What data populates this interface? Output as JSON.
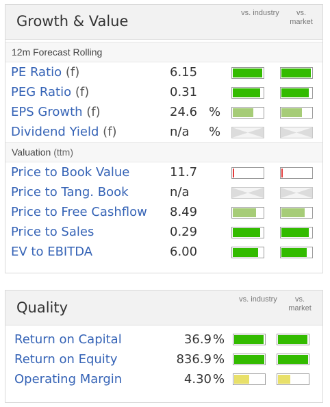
{
  "growth_value": {
    "title": "Growth & Value",
    "col_industry": "vs. industry",
    "col_market": "vs. market",
    "sections": [
      {
        "label": "12m Forecast Rolling",
        "label_sub": "",
        "rows": [
          {
            "label": "PE Ratio",
            "suffix": "(f)",
            "value": "6.15",
            "unit": "",
            "industry": {
              "level": 0.97,
              "color": "#33bb00"
            },
            "market": {
              "level": 0.97,
              "color": "#33bb00"
            }
          },
          {
            "label": "PEG Ratio",
            "suffix": "(f)",
            "value": "0.31",
            "unit": "",
            "industry": {
              "level": 0.9,
              "color": "#33bb00"
            },
            "market": {
              "level": 0.9,
              "color": "#33bb00"
            }
          },
          {
            "label": "EPS Growth",
            "suffix": "(f)",
            "value": "24.6",
            "unit": "%",
            "industry": {
              "level": 0.68,
              "color": "#a6cc77"
            },
            "market": {
              "level": 0.68,
              "color": "#a6cc77"
            }
          },
          {
            "label": "Dividend Yield",
            "suffix": "(f)",
            "value": "n/a",
            "unit": "%",
            "industry": null,
            "market": null
          }
        ]
      },
      {
        "label": "Valuation",
        "label_sub": "(ttm)",
        "rows": [
          {
            "label": "Price to Book Value",
            "suffix": "",
            "value": "11.7",
            "unit": "",
            "industry": {
              "level": 0.05,
              "color": "#e23c3c"
            },
            "market": {
              "level": 0.05,
              "color": "#e23c3c"
            }
          },
          {
            "label": "Price to Tang. Book",
            "suffix": "",
            "value": "n/a",
            "unit": "",
            "industry": null,
            "market": null
          },
          {
            "label": "Price to Free Cashflow",
            "suffix": "",
            "value": "8.49",
            "unit": "",
            "industry": {
              "level": 0.78,
              "color": "#a6cc77"
            },
            "market": {
              "level": 0.78,
              "color": "#a6cc77"
            }
          },
          {
            "label": "Price to Sales",
            "suffix": "",
            "value": "0.29",
            "unit": "",
            "industry": {
              "level": 0.9,
              "color": "#33bb00"
            },
            "market": {
              "level": 0.9,
              "color": "#33bb00"
            }
          },
          {
            "label": "EV to EBITDA",
            "suffix": "",
            "value": "6.00",
            "unit": "",
            "industry": {
              "level": 0.85,
              "color": "#33bb00"
            },
            "market": {
              "level": 0.85,
              "color": "#33bb00"
            }
          }
        ]
      }
    ]
  },
  "quality": {
    "title": "Quality",
    "col_industry": "vs. industry",
    "col_market": "vs. market",
    "rows": [
      {
        "label": "Return on Capital",
        "value": "36.9",
        "unit": "%",
        "industry": {
          "level": 0.97,
          "color": "#33bb00"
        },
        "market": {
          "level": 0.97,
          "color": "#33bb00"
        }
      },
      {
        "label": "Return on Equity",
        "value": "836.9",
        "unit": "%",
        "industry": {
          "level": 1.0,
          "color": "#33bb00"
        },
        "market": {
          "level": 1.0,
          "color": "#33bb00"
        }
      },
      {
        "label": "Operating Margin",
        "value": "4.30",
        "unit": "%",
        "industry": {
          "level": 0.5,
          "color": "#e8e06a"
        },
        "market": {
          "level": 0.4,
          "color": "#e8e06a"
        }
      }
    ]
  }
}
